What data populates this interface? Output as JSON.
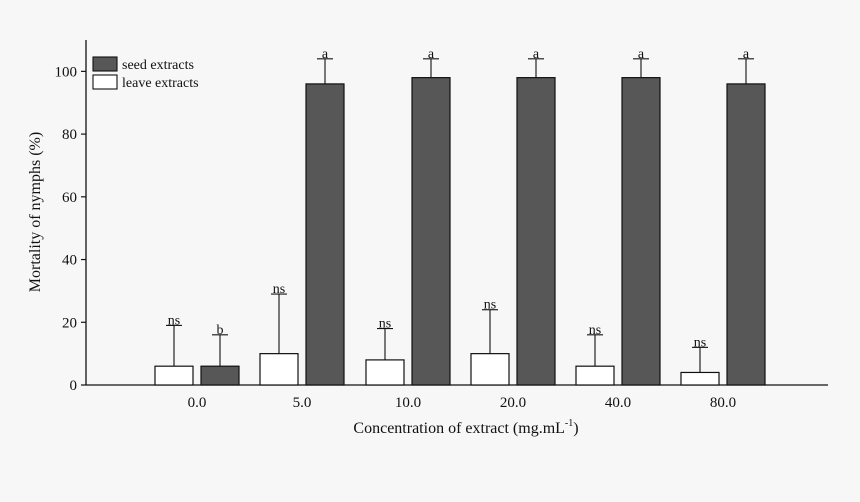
{
  "chart_data": {
    "type": "bar",
    "ylabel": "Mortality of nymphs (%)",
    "xlabel": "Concentration of extract (mg.mL",
    "xlabel_sup": "-1",
    "xlabel_close": ")",
    "ylim": [
      0,
      110
    ],
    "yticks": [
      0,
      20,
      40,
      60,
      80,
      100
    ],
    "categories": [
      "0.0",
      "5.0",
      "10.0",
      "20.0",
      "40.0",
      "80.0"
    ],
    "series": [
      {
        "name": "leave extracts",
        "color": "#ffffff",
        "values": [
          6,
          10,
          8,
          10,
          6,
          4
        ],
        "errors": [
          13,
          19,
          10,
          14,
          10,
          8
        ],
        "labels": [
          "ns",
          "ns",
          "ns",
          "ns",
          "ns",
          "ns"
        ]
      },
      {
        "name": "seed extracts",
        "color": "#575757",
        "values": [
          6,
          96,
          98,
          98,
          98,
          96
        ],
        "errors": [
          10,
          8,
          6,
          6,
          6,
          8
        ],
        "labels": [
          "b",
          "a",
          "a",
          "a",
          "a",
          "a"
        ]
      }
    ],
    "legend": "top-left",
    "grid": false
  }
}
